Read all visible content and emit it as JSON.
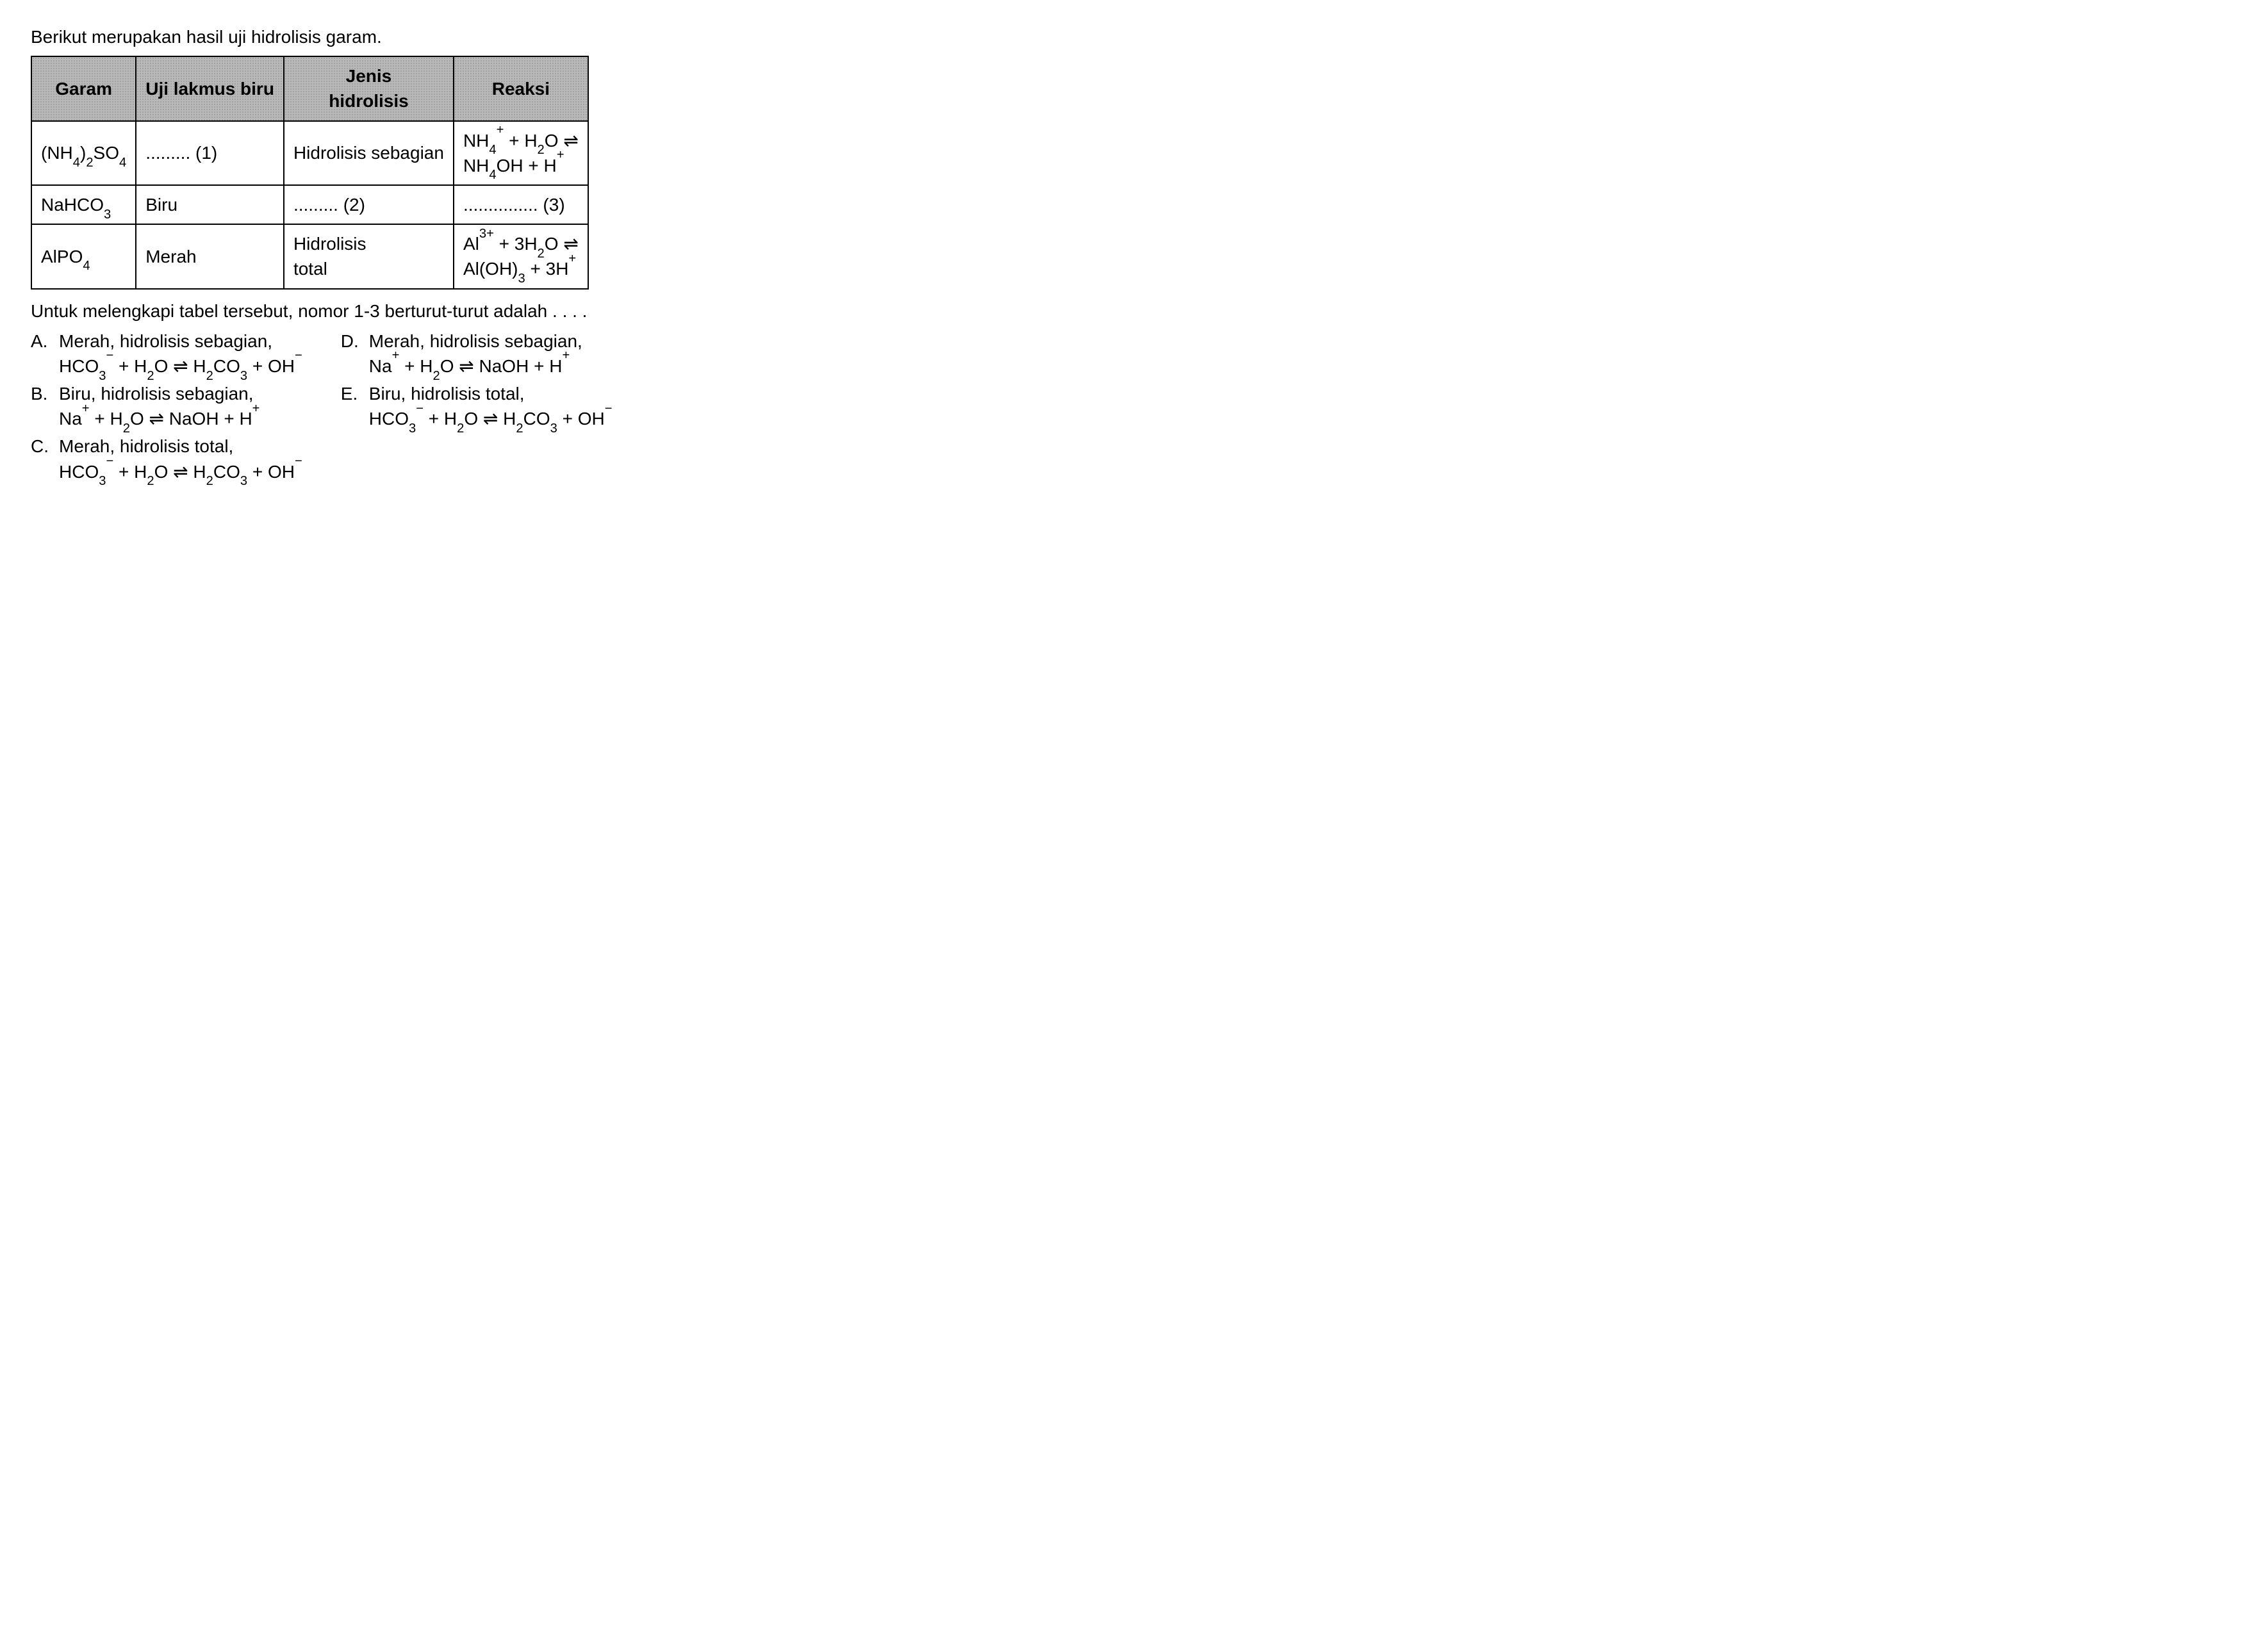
{
  "intro": "Berikut merupakan hasil uji hidrolisis garam.",
  "table": {
    "header_bg": "#b8b8b8",
    "border_color": "#000000",
    "columns": [
      "Garam",
      "Uji lakmus biru",
      "Jenis hidrolisis",
      "Reaksi"
    ],
    "rows": [
      {
        "garam_html": "(NH<sub>4</sub>)<sub>2</sub>SO<sub>4</sub>",
        "lakmus": "......... (1)",
        "jenis": "Hidrolisis sebagian",
        "reaksi_html": "NH<sub>4</sub><sup>+</sup> + H<sub>2</sub>O <span class='arrow'>⇌</span><br>NH<sub>4</sub>OH + H<sup>+</sup>"
      },
      {
        "garam_html": "NaHCO<sub>3</sub>",
        "lakmus": "Biru",
        "jenis": "......... (2)",
        "reaksi_html": "............... (3)"
      },
      {
        "garam_html": "AlPO<sub>4</sub>",
        "lakmus": "Merah",
        "jenis": "Hidrolisis total",
        "reaksi_html": "Al<sup>3+</sup> + 3H<sub>2</sub>O <span class='arrow'>⇌</span><br>Al(OH)<sub>3</sub> + 3H<sup>+</sup>"
      }
    ]
  },
  "question": "Untuk melengkapi tabel tersebut, nomor 1-3 berturut-turut adalah . . . .",
  "options": {
    "A": {
      "line1": "Merah, hidrolisis sebagian,",
      "line2_html": "HCO<sub>3</sub><sup>−</sup> + H<sub>2</sub>O <span class='arrow'>⇌</span> H<sub>2</sub>CO<sub>3</sub> + OH<sup>−</sup>"
    },
    "B": {
      "line1": "Biru, hidrolisis sebagian,",
      "line2_html": "Na<sup>+</sup> + H<sub>2</sub>O <span class='arrow'>⇌</span> NaOH + H<sup>+</sup>"
    },
    "C": {
      "line1": "Merah, hidrolisis total,",
      "line2_html": "HCO<sub>3</sub><sup>−</sup> + H<sub>2</sub>O <span class='arrow'>⇌</span> H<sub>2</sub>CO<sub>3</sub> + OH<sup>−</sup>"
    },
    "D": {
      "line1": "Merah, hidrolisis sebagian,",
      "line2_html": "Na<sup>+</sup> + H<sub>2</sub>O <span class='arrow'>⇌</span> NaOH + H<sup>+</sup>"
    },
    "E": {
      "line1": "Biru, hidrolisis total,",
      "line2_html": "HCO<sub>3</sub><sup>−</sup> + H<sub>2</sub>O <span class='arrow'>⇌</span> H<sub>2</sub>CO<sub>3</sub> + OH<sup>−</sup>"
    }
  },
  "labels": {
    "A": "A.",
    "B": "B.",
    "C": "C.",
    "D": "D.",
    "E": "E."
  }
}
